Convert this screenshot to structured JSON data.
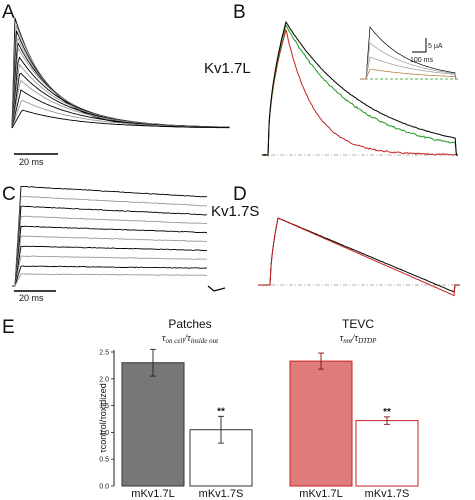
{
  "colors": {
    "black": "#000000",
    "gray": "#9a9a9a",
    "green": "#1f9a1f",
    "red": "#c62020",
    "bar_gray": "#777777",
    "bar_red": "#e07b7b",
    "dash": "#aaaaaa"
  },
  "panels": {
    "a": {
      "label": "A",
      "scale": "20 ms"
    },
    "b": {
      "label": "B",
      "construct": "Kv1.7L",
      "inset_scale_y": "5 µA",
      "inset_scale_x": "100 ms"
    },
    "c": {
      "label": "C",
      "scale": "20 ms"
    },
    "d": {
      "label": "D",
      "construct": "Kv1.7S"
    },
    "e": {
      "label": "E"
    }
  },
  "chart_data": {
    "type": "bar",
    "title": "",
    "ylabel": "τcontrol/τoxidized",
    "ylim": [
      0,
      2.5
    ],
    "yticks": [
      "0.0",
      "0.5",
      "1.0",
      "1.5",
      "2.0",
      "2.5"
    ],
    "groups": [
      {
        "title": "Patches",
        "sub_main": "τ",
        "sub_a": "on cell",
        "sub_mid": "/τ",
        "sub_b": "inside out"
      },
      {
        "title": "TEVC",
        "sub_main": "τ",
        "sub_a": "nm",
        "sub_mid": "/τ",
        "sub_b": "DTDP"
      }
    ],
    "categories": [
      "mKv1.7L",
      "mKv1.7S",
      "mKv1.7L",
      "mKv1.7S"
    ],
    "values": [
      2.3,
      1.05,
      2.33,
      1.22
    ],
    "errors": [
      0.25,
      0.25,
      0.15,
      0.07
    ],
    "fills": [
      "#777777",
      "#ffffff",
      "#e07b7b",
      "#ffffff"
    ],
    "strokes": [
      "#333333",
      "#333333",
      "#c62020",
      "#c62020"
    ],
    "annotations": [
      "",
      "**",
      "",
      "**"
    ],
    "grid": false,
    "legend": "none"
  }
}
